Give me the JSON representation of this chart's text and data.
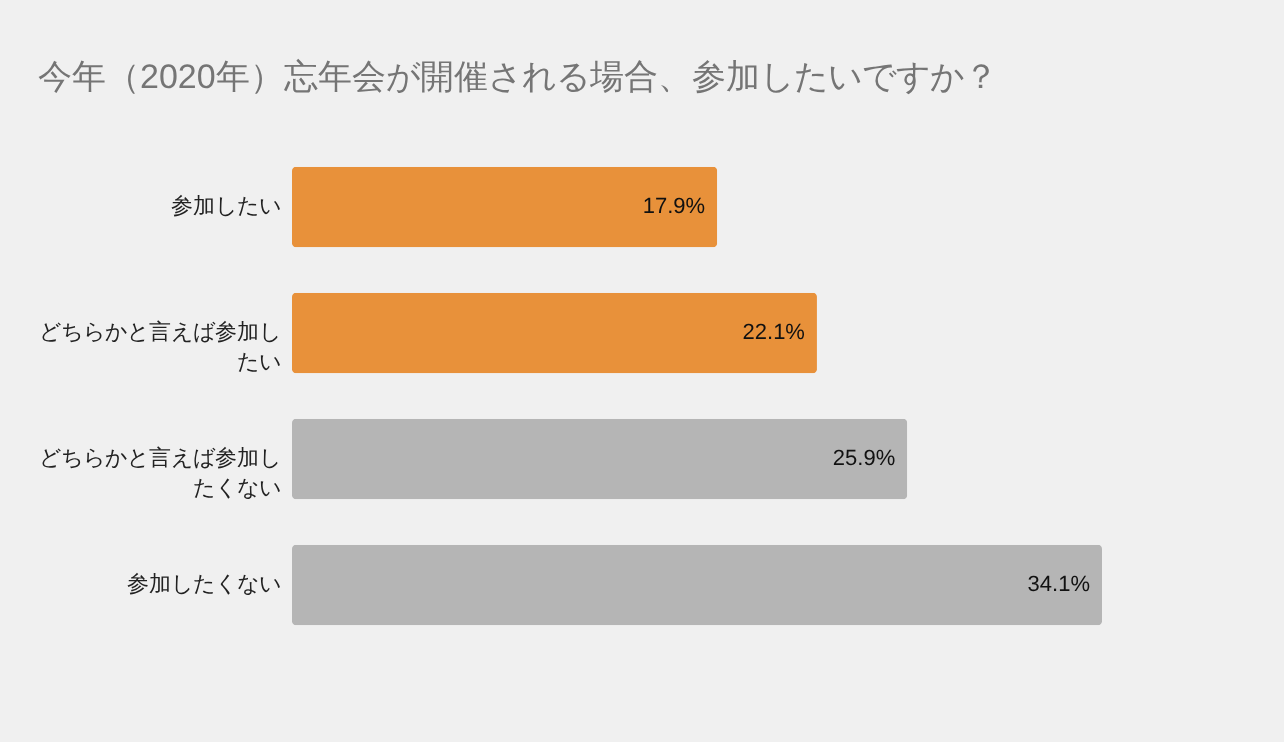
{
  "chart_data": {
    "type": "bar",
    "orientation": "horizontal",
    "title": "今年（2020年）忘年会が開催される場合、参加したいですか？",
    "categories": [
      "参加したい",
      "どちらかと言えば参加したい",
      "どちらかと言えば参加したくない",
      "参加したくない"
    ],
    "values": [
      17.9,
      22.1,
      25.9,
      34.1
    ],
    "colors": [
      "#e8913a",
      "#e8913a",
      "#b5b5b5",
      "#b5b5b5"
    ],
    "value_labels": [
      "17.9%",
      "22.1%",
      "25.9%",
      "34.1%"
    ],
    "grid": false
  }
}
